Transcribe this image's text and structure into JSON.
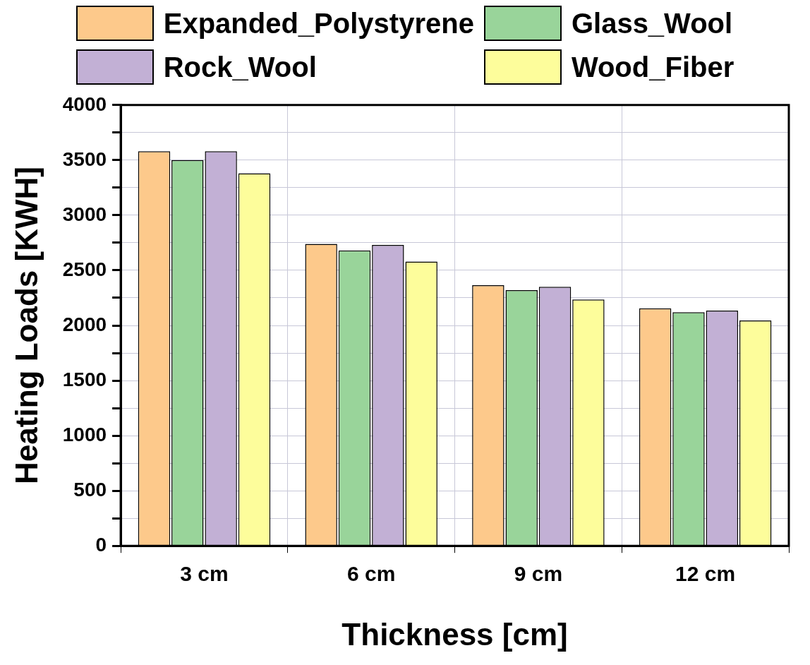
{
  "chart_data": {
    "type": "bar",
    "xlabel": "Thickness [cm]",
    "ylabel": "Heating Loads [KWH]",
    "categories": [
      "3 cm",
      "6 cm",
      "9 cm",
      "12 cm"
    ],
    "series": [
      {
        "name": "Expanded_Polystyrene",
        "color": "#fdc98b",
        "values": [
          3580,
          2740,
          2365,
          2155
        ]
      },
      {
        "name": "Glass_Wool",
        "color": "#99d49a",
        "values": [
          3500,
          2680,
          2320,
          2120
        ]
      },
      {
        "name": "Rock_Wool",
        "color": "#c2b0d5",
        "values": [
          3580,
          2730,
          2350,
          2135
        ]
      },
      {
        "name": "Wood_Fiber",
        "color": "#fdfd9b",
        "values": [
          3380,
          2580,
          2235,
          2045
        ]
      }
    ],
    "ylim": [
      0,
      4000
    ],
    "yticks": [
      0,
      {
        "value": 250,
        "label": null
      },
      500,
      {
        "value": 750,
        "label": null
      },
      1000,
      {
        "value": 1250,
        "label": null
      },
      1500,
      {
        "value": 1750,
        "label": null
      },
      2000,
      {
        "value": 2250,
        "label": null
      },
      2500,
      {
        "value": 2750,
        "label": null
      },
      3000,
      {
        "value": 3250,
        "label": null
      },
      3500,
      {
        "value": 3750,
        "label": null
      },
      4000
    ],
    "grid": true,
    "legend": "top"
  }
}
